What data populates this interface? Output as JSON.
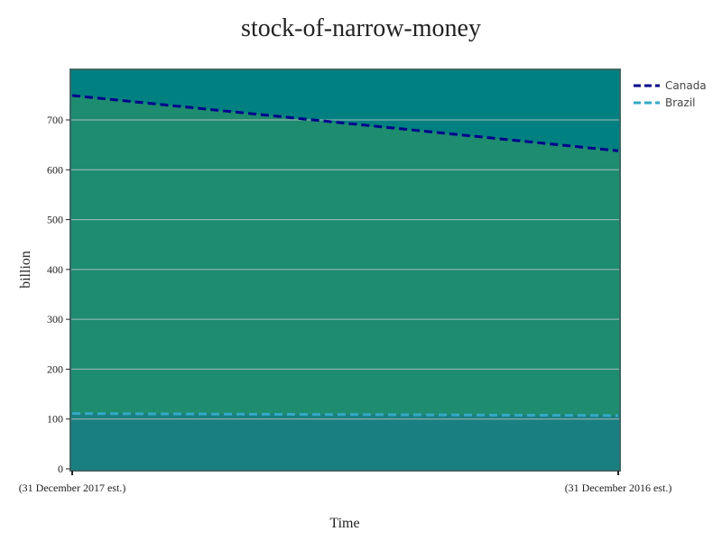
{
  "chart_data": {
    "type": "area",
    "title": "stock-of-narrow-money",
    "xlabel": "Time",
    "ylabel": "billion",
    "categories": [
      "(31 December 2017 est.)",
      "(31 December 2016 est.)"
    ],
    "ylim": [
      0,
      800
    ],
    "yticks": [
      0,
      100,
      200,
      300,
      400,
      500,
      600,
      700
    ],
    "grid": true,
    "legend_position": "top-right",
    "series": [
      {
        "name": "Canada",
        "values": [
          749,
          638
        ],
        "line_color": "#00008b",
        "line_style": "dashed",
        "fill_color": "#1e8c6e"
      },
      {
        "name": "Brazil",
        "values": [
          111,
          107
        ],
        "line_color": "#33a8c7",
        "line_style": "dashed",
        "fill_color": "#1a7f80"
      }
    ],
    "plot_background": "#008080",
    "gridline_color": "#a9bcbc"
  }
}
